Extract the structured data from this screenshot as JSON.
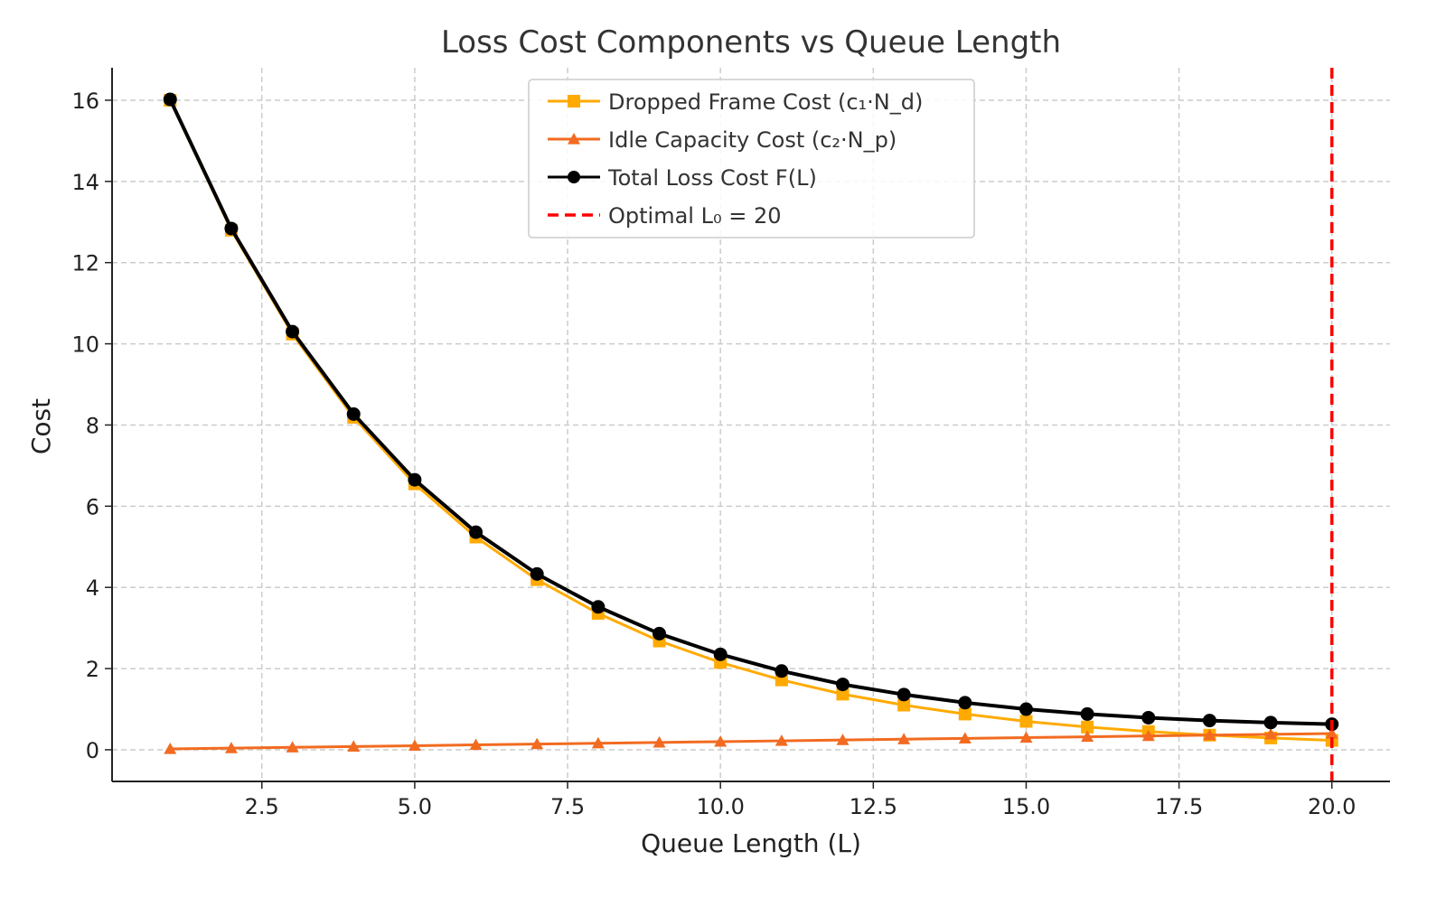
{
  "chart_data": {
    "type": "line",
    "title": "Loss Cost Components vs Queue Length",
    "xlabel": "Queue Length (L)",
    "ylabel": "Cost",
    "xlim": [
      0.05,
      20.95
    ],
    "ylim": [
      -0.78,
      16.8
    ],
    "xticks": [
      2.5,
      5.0,
      7.5,
      10.0,
      12.5,
      15.0,
      17.5,
      20.0
    ],
    "xtick_labels": [
      "2.5",
      "5.0",
      "7.5",
      "10.0",
      "12.5",
      "15.0",
      "17.5",
      "20.0"
    ],
    "yticks": [
      0,
      2,
      4,
      6,
      8,
      10,
      12,
      14,
      16
    ],
    "ytick_labels": [
      "0",
      "2",
      "4",
      "6",
      "8",
      "10",
      "12",
      "14",
      "16"
    ],
    "grid": true,
    "legend_position": "top-center",
    "x": [
      1,
      2,
      3,
      4,
      5,
      6,
      7,
      8,
      9,
      10,
      11,
      12,
      13,
      14,
      15,
      16,
      17,
      18,
      19,
      20
    ],
    "series": [
      {
        "name": "Dropped Frame Cost (c₁·N_d)",
        "color": "#FFAA00",
        "marker": "square",
        "values": [
          16,
          12.8,
          10.24,
          8.19,
          6.55,
          5.24,
          4.19,
          3.36,
          2.68,
          2.15,
          1.72,
          1.37,
          1.1,
          0.88,
          0.7,
          0.56,
          0.45,
          0.36,
          0.29,
          0.23
        ]
      },
      {
        "name": "Idle Capacity Cost (c₂·N_p)",
        "color": "#F26B21",
        "marker": "triangle",
        "values": [
          0.02,
          0.04,
          0.06,
          0.08,
          0.1,
          0.12,
          0.14,
          0.16,
          0.18,
          0.2,
          0.22,
          0.24,
          0.26,
          0.28,
          0.3,
          0.32,
          0.34,
          0.36,
          0.38,
          0.4
        ]
      },
      {
        "name": "Total Loss Cost F(L)",
        "color": "#000000",
        "marker": "circle",
        "values": [
          16.02,
          12.84,
          10.3,
          8.27,
          6.65,
          5.36,
          4.33,
          3.52,
          2.86,
          2.35,
          1.94,
          1.61,
          1.36,
          1.16,
          1.0,
          0.88,
          0.79,
          0.72,
          0.67,
          0.63
        ]
      }
    ],
    "vline": {
      "name": "Optimal L₀ = 20",
      "x": 20,
      "color": "#FF0000",
      "style": "dashed"
    }
  }
}
